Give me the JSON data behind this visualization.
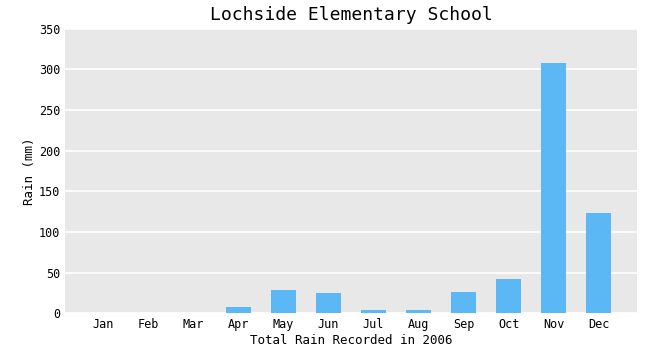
{
  "title": "Lochside Elementary School",
  "xlabel": "Total Rain Recorded in 2006",
  "ylabel": "Rain (mm)",
  "categories": [
    "Jan",
    "Feb",
    "Mar",
    "Apr",
    "May",
    "Jun",
    "Jul",
    "Aug",
    "Sep",
    "Oct",
    "Nov",
    "Dec"
  ],
  "values": [
    0,
    0,
    0,
    8,
    28,
    25,
    4,
    4,
    26,
    42,
    308,
    123
  ],
  "bar_color": "#5BB8F5",
  "ylim": [
    0,
    350
  ],
  "yticks": [
    0,
    50,
    100,
    150,
    200,
    250,
    300,
    350
  ],
  "background_color": "#E8E8E8",
  "title_fontsize": 13,
  "label_fontsize": 9,
  "tick_fontsize": 8.5
}
